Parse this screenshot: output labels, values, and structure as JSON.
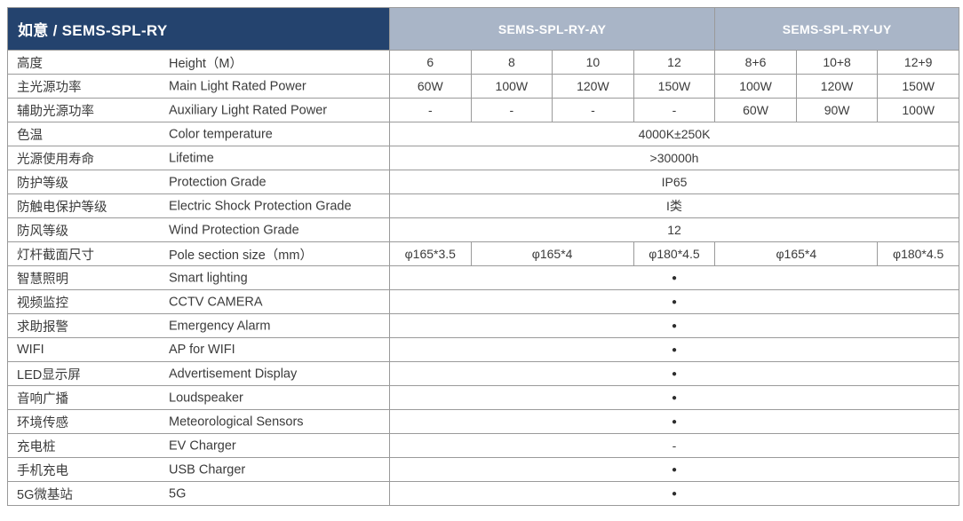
{
  "colors": {
    "header_navy": "#24436e",
    "header_gray_blue": "#a9b5c7",
    "grid_line": "#9a9a9a"
  },
  "table": {
    "title": "如意 / SEMS-SPL-RY",
    "groups": [
      {
        "label": "SEMS-SPL-RY-AY",
        "span": 4
      },
      {
        "label": "SEMS-SPL-RY-UY",
        "span": 3
      }
    ],
    "rows": [
      {
        "zh": "高度",
        "en": "Height（M）",
        "cells": [
          {
            "t": "6"
          },
          {
            "t": "8"
          },
          {
            "t": "10"
          },
          {
            "t": "12"
          },
          {
            "t": "8+6"
          },
          {
            "t": "10+8"
          },
          {
            "t": "12+9"
          }
        ]
      },
      {
        "zh": "主光源功率",
        "en": "Main Light Rated Power",
        "cells": [
          {
            "t": "60W"
          },
          {
            "t": "100W"
          },
          {
            "t": "120W"
          },
          {
            "t": "150W"
          },
          {
            "t": "100W"
          },
          {
            "t": "120W"
          },
          {
            "t": "150W"
          }
        ]
      },
      {
        "zh": "辅助光源功率",
        "en": "Auxiliary Light Rated Power",
        "cells": [
          {
            "t": "-"
          },
          {
            "t": "-"
          },
          {
            "t": "-"
          },
          {
            "t": "-"
          },
          {
            "t": "60W"
          },
          {
            "t": "90W"
          },
          {
            "t": "100W"
          }
        ]
      },
      {
        "zh": "色温",
        "en": "Color temperature",
        "cells": [
          {
            "t": "4000K±250K",
            "span": 7
          }
        ]
      },
      {
        "zh": "光源使用寿命",
        "en": "Lifetime",
        "cells": [
          {
            "t": ">30000h",
            "span": 7
          }
        ]
      },
      {
        "zh": "防护等级",
        "en": "Protection Grade",
        "cells": [
          {
            "t": "IP65",
            "span": 7
          }
        ]
      },
      {
        "zh": "防触电保护等级",
        "en": "Electric Shock Protection Grade",
        "cells": [
          {
            "t": "I类",
            "span": 7
          }
        ]
      },
      {
        "zh": "防风等级",
        "en": "Wind Protection Grade",
        "cells": [
          {
            "t": "12",
            "span": 7
          }
        ]
      },
      {
        "zh": "灯杆截面尺寸",
        "en": "Pole section size（mm）",
        "cells": [
          {
            "t": "φ165*3.5"
          },
          {
            "t": "φ165*4",
            "span": 2
          },
          {
            "t": "φ180*4.5"
          },
          {
            "t": "φ165*4",
            "span": 2
          },
          {
            "t": "φ180*4.5"
          }
        ]
      },
      {
        "zh": "智慧照明",
        "en": "Smart lighting",
        "cells": [
          {
            "t": "●",
            "span": 7
          }
        ]
      },
      {
        "zh": "视频监控",
        "en": "CCTV CAMERA",
        "cells": [
          {
            "t": "●",
            "span": 7
          }
        ]
      },
      {
        "zh": "求助报警",
        "en": "Emergency Alarm",
        "cells": [
          {
            "t": "●",
            "span": 7
          }
        ]
      },
      {
        "zh": "WIFI",
        "en": "AP for WIFI",
        "cells": [
          {
            "t": "●",
            "span": 7
          }
        ]
      },
      {
        "zh": "LED显示屏",
        "en": "Advertisement Display",
        "cells": [
          {
            "t": "●",
            "span": 7
          }
        ]
      },
      {
        "zh": "音响广播",
        "en": "Loudspeaker",
        "cells": [
          {
            "t": "●",
            "span": 7
          }
        ]
      },
      {
        "zh": "环境传感",
        "en": "Meteorological Sensors",
        "cells": [
          {
            "t": "●",
            "span": 7
          }
        ]
      },
      {
        "zh": "充电桩",
        "en": "EV Charger",
        "cells": [
          {
            "t": "-",
            "span": 7
          }
        ]
      },
      {
        "zh": "手机充电",
        "en": "USB Charger",
        "cells": [
          {
            "t": "●",
            "span": 7
          }
        ]
      },
      {
        "zh": "5G微基站",
        "en": "5G",
        "cells": [
          {
            "t": "●",
            "span": 7
          }
        ]
      }
    ]
  }
}
